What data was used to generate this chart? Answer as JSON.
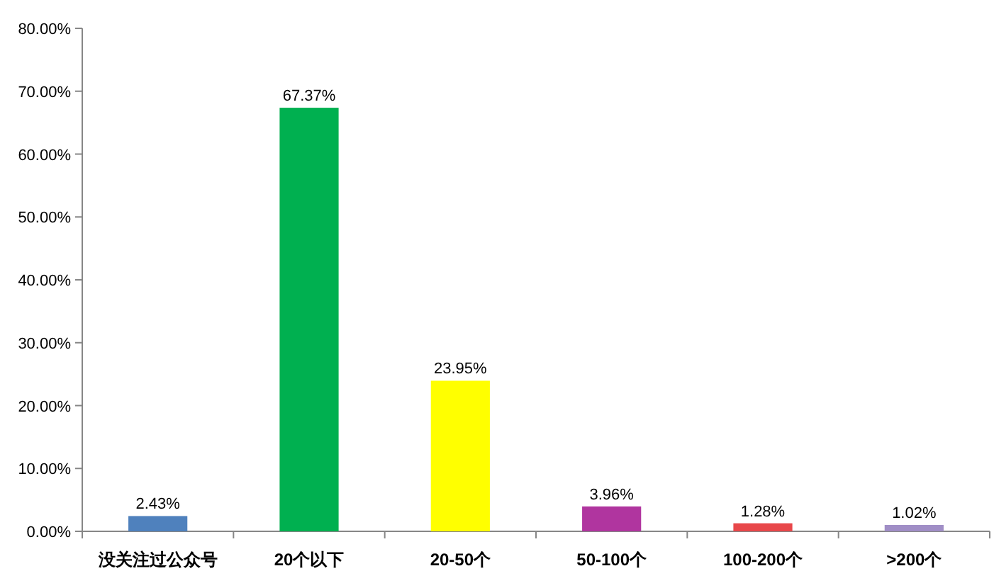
{
  "chart_data": {
    "type": "bar",
    "categories": [
      "没关注过公众号",
      "20个以下",
      "20-50个",
      "50-100个",
      "100-200个",
      ">200个"
    ],
    "values": [
      2.43,
      67.37,
      23.95,
      3.96,
      1.28,
      1.02
    ],
    "colors": [
      "#4f81bd",
      "#00b050",
      "#ffff00",
      "#b0359f",
      "#e8474a",
      "#a08ec6"
    ],
    "value_labels": [
      "2.43%",
      "67.37%",
      "23.95%",
      "3.96%",
      "1.28%",
      "1.02%"
    ],
    "ylim": [
      0,
      80
    ],
    "yticks": [
      {
        "value": 0,
        "label": "0.00%"
      },
      {
        "value": 10,
        "label": "10.00%"
      },
      {
        "value": 20,
        "label": "20.00%"
      },
      {
        "value": 30,
        "label": "30.00%"
      },
      {
        "value": 40,
        "label": "40.00%"
      },
      {
        "value": 50,
        "label": "50.00%"
      },
      {
        "value": 60,
        "label": "60.00%"
      },
      {
        "value": 70,
        "label": "70.00%"
      },
      {
        "value": 80,
        "label": "80.00%"
      }
    ],
    "grid": false
  }
}
